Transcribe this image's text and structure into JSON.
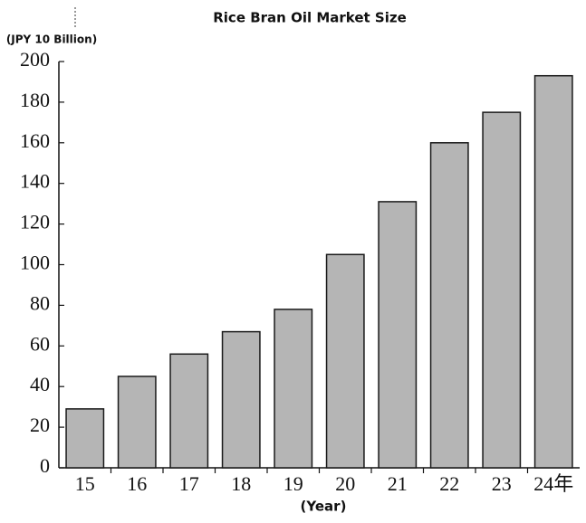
{
  "chart_data": {
    "type": "bar",
    "title": "Rice Bran Oil Market Size",
    "y_label": "(JPY 10 Billion)",
    "x_label": "(Year)",
    "categories": [
      "15",
      "16",
      "17",
      "18",
      "19",
      "20",
      "21",
      "22",
      "23",
      "24年"
    ],
    "values": [
      29,
      45,
      56,
      67,
      78,
      105,
      131,
      160,
      175,
      193
    ],
    "color": "#b5b5b5",
    "edge_color": "#1a1a1a",
    "ylim": [
      0,
      200
    ],
    "yticks": [
      0,
      20,
      40,
      60,
      80,
      100,
      120,
      140,
      160,
      180,
      200
    ],
    "grid": false
  }
}
